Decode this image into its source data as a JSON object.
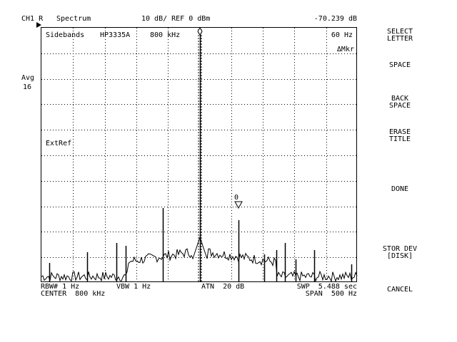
{
  "header": {
    "channel": "CH1 R",
    "measurement": "Spectrum",
    "scale": "10 dB/ REF 0 dBm",
    "marker_value": "-70.239 dB"
  },
  "left": {
    "avg_label": "Avg",
    "avg_value": "16"
  },
  "plot": {
    "title_left": "Sidebands",
    "title_model": "HP3335A",
    "title_freq": "800 kHz",
    "marker_freq": "60 Hz",
    "marker_mode": "ΔMkr",
    "ref_label": "ExtRef",
    "marker_id": "0"
  },
  "footer": {
    "rbw": "RBW# 1 Hz",
    "vbw": "VBW 1 Hz",
    "atn": "ATN  20 dB",
    "swp": "SWP  5.488 sec",
    "center": "CENTER  800 kHz",
    "span": "SPAN  500 Hz"
  },
  "softkeys": [
    {
      "label": "SELECT\nLETTER"
    },
    {
      "label": "SPACE"
    },
    {
      "label": "BACK\nSPACE"
    },
    {
      "label": "ERASE\nTITLE"
    },
    {
      "label": "DONE"
    },
    {
      "label": "STOR DEV\n[DISK]"
    },
    {
      "label": "CANCEL"
    }
  ],
  "colors": {
    "trace": "#000000",
    "grid": "#000000",
    "background": "#ffffff"
  }
}
